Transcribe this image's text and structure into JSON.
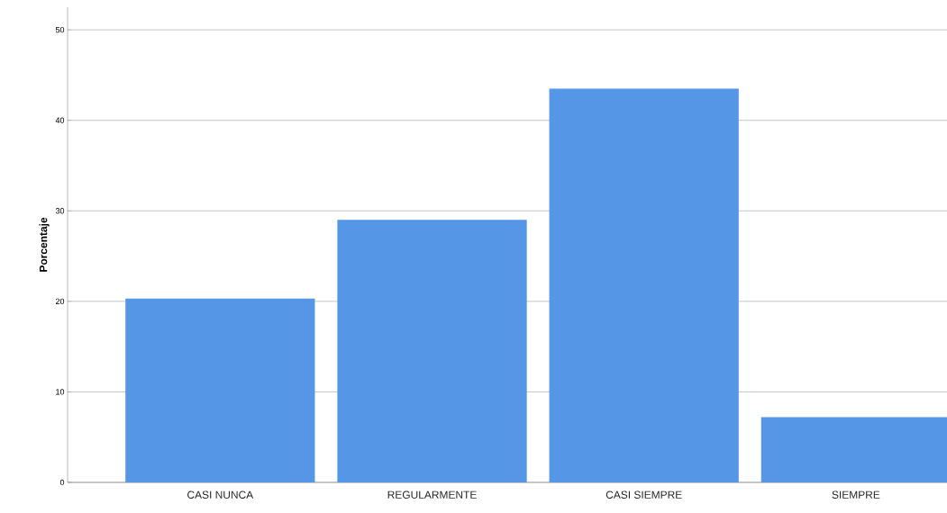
{
  "chart_data": {
    "type": "bar",
    "ylabel": "Porcentaje",
    "categories": [
      "CASI NUNCA",
      "REGULARMENTE",
      "CASI SIEMPRE",
      "SIEMPRE"
    ],
    "values": [
      20.3,
      29.0,
      43.5,
      7.2
    ],
    "color": "#5596e6",
    "ylim": [
      0,
      52.5
    ],
    "yticks": [
      0,
      10,
      20,
      30,
      40,
      50
    ],
    "grid": "y"
  }
}
